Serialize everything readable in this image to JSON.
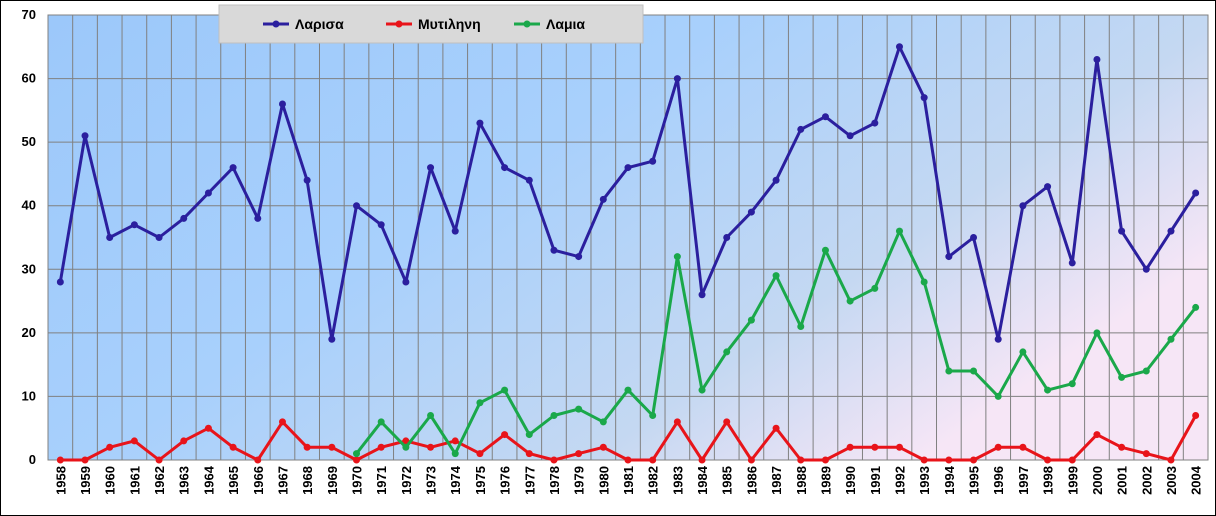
{
  "chart_data": {
    "type": "line",
    "title": "",
    "xlabel": "",
    "ylabel": "",
    "ylim": [
      0,
      70
    ],
    "yticks": [
      0,
      10,
      20,
      30,
      40,
      50,
      60,
      70
    ],
    "grid": true,
    "legend_position": "top",
    "categories": [
      "1958",
      "1959",
      "1960",
      "1961",
      "1962",
      "1963",
      "1964",
      "1965",
      "1966",
      "1967",
      "1968",
      "1969",
      "1970",
      "1971",
      "1972",
      "1973",
      "1974",
      "1975",
      "1976",
      "1977",
      "1978",
      "1979",
      "1980",
      "1981",
      "1982",
      "1983",
      "1984",
      "1985",
      "1986",
      "1987",
      "1988",
      "1989",
      "1990",
      "1991",
      "1992",
      "1993",
      "1994",
      "1995",
      "1996",
      "1997",
      "1998",
      "1999",
      "2000",
      "2001",
      "2002",
      "2003",
      "2004"
    ],
    "series": [
      {
        "name": "Λαρισα",
        "color": "#2b1f9e",
        "values": [
          28,
          51,
          35,
          37,
          35,
          38,
          42,
          46,
          38,
          56,
          44,
          19,
          40,
          37,
          28,
          46,
          36,
          53,
          46,
          44,
          33,
          32,
          41,
          46,
          47,
          60,
          26,
          35,
          39,
          44,
          52,
          54,
          51,
          53,
          65,
          57,
          32,
          35,
          19,
          40,
          43,
          31,
          63,
          36,
          30,
          36,
          42
        ]
      },
      {
        "name": "Μυτιληνη",
        "color": "#e8141a",
        "values": [
          0,
          0,
          2,
          3,
          0,
          3,
          5,
          2,
          0,
          6,
          2,
          2,
          0,
          2,
          3,
          2,
          3,
          1,
          4,
          1,
          0,
          1,
          2,
          0,
          0,
          6,
          0,
          6,
          0,
          5,
          0,
          0,
          2,
          2,
          2,
          0,
          0,
          0,
          2,
          2,
          0,
          0,
          4,
          2,
          1,
          0,
          7
        ]
      },
      {
        "name": "Λαμια",
        "color": "#1aa84a",
        "values": [
          null,
          null,
          null,
          null,
          null,
          null,
          null,
          null,
          null,
          null,
          null,
          null,
          1,
          6,
          2,
          7,
          1,
          9,
          11,
          4,
          7,
          8,
          6,
          11,
          7,
          32,
          11,
          17,
          22,
          29,
          21,
          33,
          25,
          27,
          36,
          28,
          14,
          14,
          10,
          17,
          11,
          12,
          20,
          13,
          14,
          19,
          24
        ]
      }
    ]
  }
}
